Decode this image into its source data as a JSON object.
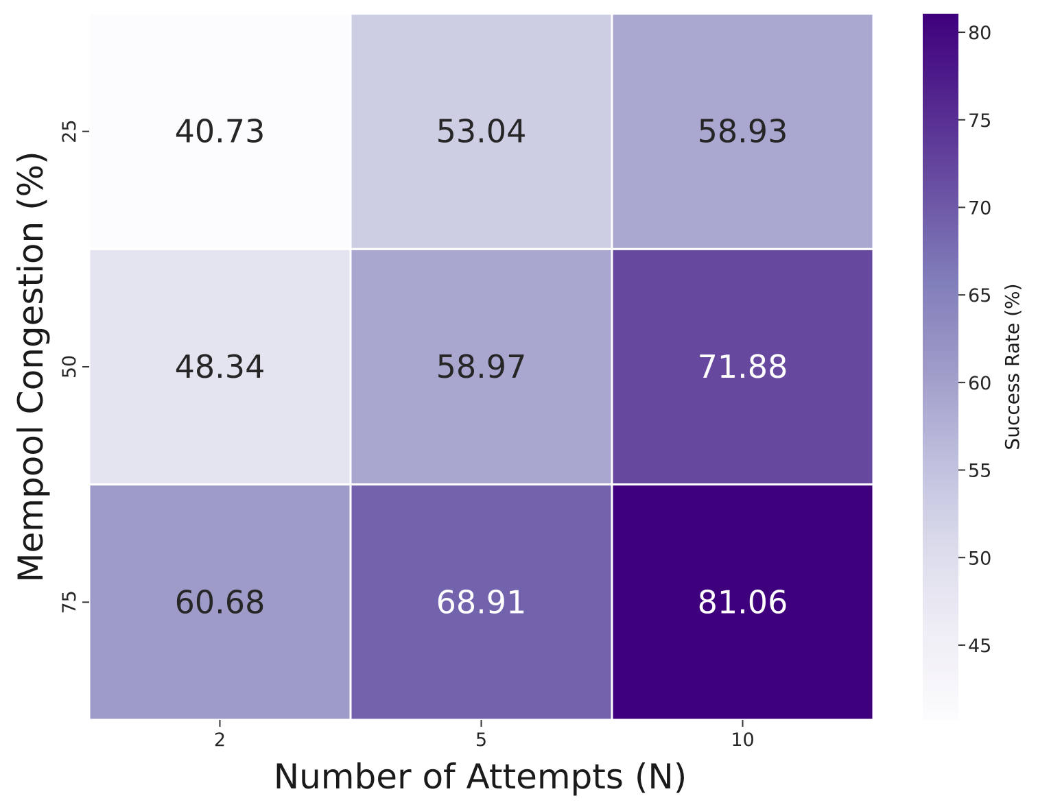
{
  "chart_data": {
    "type": "heatmap",
    "xlabel": "Number of Attempts (N)",
    "ylabel": "Mempool Congestion (%)",
    "x_categories": [
      "2",
      "5",
      "10"
    ],
    "y_categories": [
      "25",
      "50",
      "75"
    ],
    "values": [
      [
        40.73,
        53.04,
        58.93
      ],
      [
        48.34,
        58.97,
        71.88
      ],
      [
        60.68,
        68.91,
        81.06
      ]
    ],
    "value_labels": [
      [
        "40.73",
        "53.04",
        "58.93"
      ],
      [
        "48.34",
        "58.97",
        "71.88"
      ],
      [
        "60.68",
        "68.91",
        "81.06"
      ]
    ],
    "colorbar": {
      "label": "Success Rate (%)",
      "range": [
        40.73,
        81.06
      ],
      "ticks": [
        "45",
        "50",
        "55",
        "60",
        "65",
        "70",
        "75",
        "80"
      ],
      "colormap": "Purples",
      "colors": [
        "#fcfbfd",
        "#efedf5",
        "#dadaeb",
        "#bcbddc",
        "#9e9ac8",
        "#807dba",
        "#6a51a3",
        "#54278f",
        "#3f007d"
      ]
    }
  }
}
